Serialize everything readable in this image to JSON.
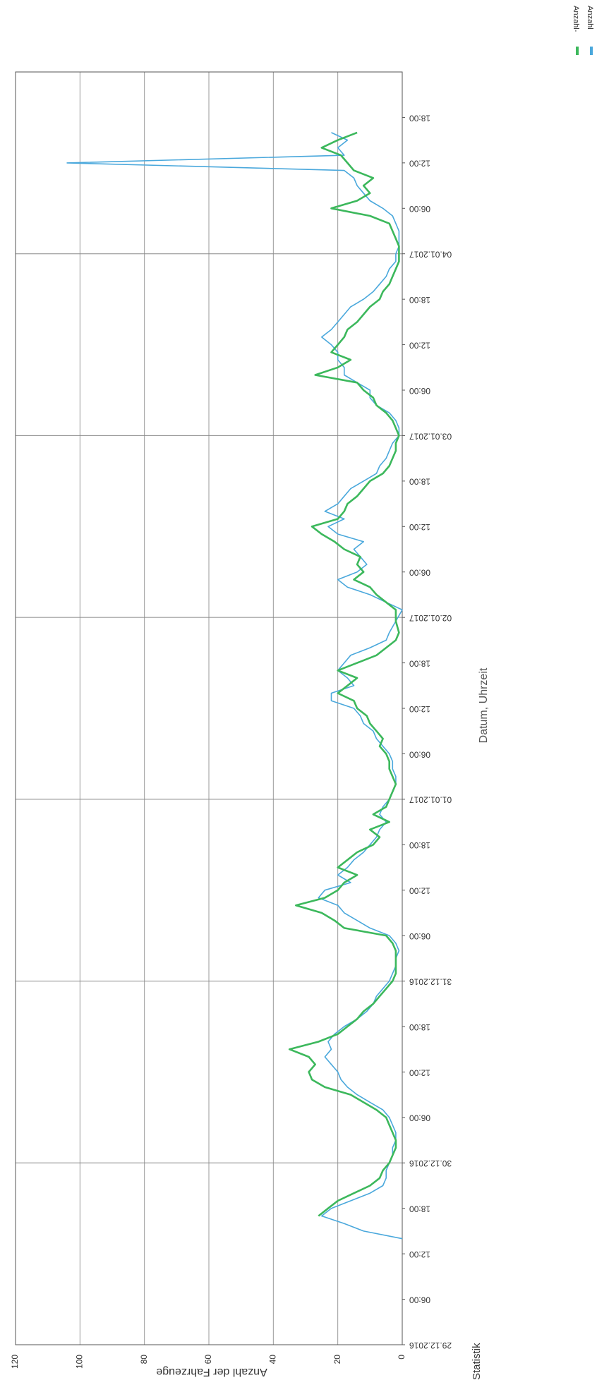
{
  "chart_data": {
    "type": "line",
    "orientation": "rotated-90",
    "xlabel": "Datum, Uhrzeit",
    "ylabel": "Anzahl der Fahrzeuge",
    "ylim": [
      0,
      120
    ],
    "yticks": [
      0,
      20,
      40,
      60,
      80,
      100,
      120
    ],
    "xlim": [
      "29.12.2016 00:00",
      "05.01.2017 00:00"
    ],
    "x_hours_range": [
      0,
      168
    ],
    "x_tick_labels": [
      {
        "label": "29.12.2016",
        "major": true
      },
      {
        "label": "06:00",
        "major": false
      },
      {
        "label": "12:00",
        "major": false
      },
      {
        "label": "18:00",
        "major": false
      },
      {
        "label": "30.12.2016",
        "major": true
      },
      {
        "label": "06:00",
        "major": false
      },
      {
        "label": "12:00",
        "major": false
      },
      {
        "label": "18:00",
        "major": false
      },
      {
        "label": "31.12.2016",
        "major": true
      },
      {
        "label": "06:00",
        "major": false
      },
      {
        "label": "12:00",
        "major": false
      },
      {
        "label": "18:00",
        "major": false
      },
      {
        "label": "01.01.2017",
        "major": true
      },
      {
        "label": "06:00",
        "major": false
      },
      {
        "label": "12:00",
        "major": false
      },
      {
        "label": "18:00",
        "major": false
      },
      {
        "label": "02.01.2017",
        "major": true
      },
      {
        "label": "06:00",
        "major": false
      },
      {
        "label": "12:00",
        "major": false
      },
      {
        "label": "18:00",
        "major": false
      },
      {
        "label": "03.01.2017",
        "major": true
      },
      {
        "label": "06:00",
        "major": false
      },
      {
        "label": "12:00",
        "major": false
      },
      {
        "label": "18:00",
        "major": false
      },
      {
        "label": "04.01.2017",
        "major": true
      },
      {
        "label": "06:00",
        "major": false
      },
      {
        "label": "12:00",
        "major": false
      },
      {
        "label": "18:00",
        "major": false
      }
    ],
    "grid": true,
    "legend_position": "top-right",
    "series": [
      {
        "name": "Anzahl",
        "color": "#4aa8dc",
        "points": [
          [
            14,
            0
          ],
          [
            15,
            12
          ],
          [
            16,
            18
          ],
          [
            17,
            25
          ],
          [
            18,
            22
          ],
          [
            19,
            16
          ],
          [
            20,
            10
          ],
          [
            21,
            6
          ],
          [
            22,
            5
          ],
          [
            23,
            5
          ],
          [
            24,
            4
          ],
          [
            25,
            3
          ],
          [
            26,
            3
          ],
          [
            27,
            2
          ],
          [
            28,
            2
          ],
          [
            29,
            3
          ],
          [
            30,
            4
          ],
          [
            31,
            6
          ],
          [
            32,
            10
          ],
          [
            33,
            14
          ],
          [
            34,
            17
          ],
          [
            35,
            19
          ],
          [
            36,
            20
          ],
          [
            37,
            22
          ],
          [
            38,
            24
          ],
          [
            39,
            22
          ],
          [
            40,
            23
          ],
          [
            41,
            21
          ],
          [
            42,
            18
          ],
          [
            43,
            14
          ],
          [
            44,
            11
          ],
          [
            45,
            9
          ],
          [
            46,
            8
          ],
          [
            47,
            6
          ],
          [
            48,
            4
          ],
          [
            49,
            3
          ],
          [
            50,
            2
          ],
          [
            51,
            2
          ],
          [
            52,
            1
          ],
          [
            53,
            2
          ],
          [
            54,
            4
          ],
          [
            55,
            10
          ],
          [
            56,
            14
          ],
          [
            57,
            18
          ],
          [
            58,
            20
          ],
          [
            59,
            26
          ],
          [
            60,
            24
          ],
          [
            61,
            16
          ],
          [
            62,
            20
          ],
          [
            63,
            17
          ],
          [
            64,
            15
          ],
          [
            65,
            12
          ],
          [
            66,
            10
          ],
          [
            67,
            8
          ],
          [
            68,
            7
          ],
          [
            69,
            5
          ],
          [
            70,
            7
          ],
          [
            71,
            6
          ],
          [
            72,
            4
          ],
          [
            73,
            3
          ],
          [
            74,
            2
          ],
          [
            75,
            2
          ],
          [
            76,
            3
          ],
          [
            77,
            3
          ],
          [
            78,
            4
          ],
          [
            79,
            6
          ],
          [
            80,
            8
          ],
          [
            81,
            9
          ],
          [
            82,
            12
          ],
          [
            83,
            13
          ],
          [
            84,
            15
          ],
          [
            85,
            22
          ],
          [
            86,
            22
          ],
          [
            87,
            15
          ],
          [
            88,
            17
          ],
          [
            89,
            20
          ],
          [
            90,
            18
          ],
          [
            91,
            16
          ],
          [
            92,
            10
          ],
          [
            93,
            5
          ],
          [
            94,
            4
          ],
          [
            97,
            0
          ],
          [
            98,
            5
          ],
          [
            99,
            10
          ],
          [
            100,
            17
          ],
          [
            101,
            20
          ],
          [
            102,
            14
          ],
          [
            103,
            11
          ],
          [
            104,
            13
          ],
          [
            105,
            15
          ],
          [
            106,
            12
          ],
          [
            107,
            20
          ],
          [
            108,
            23
          ],
          [
            109,
            18
          ],
          [
            110,
            24
          ],
          [
            111,
            20
          ],
          [
            112,
            18
          ],
          [
            113,
            16
          ],
          [
            114,
            12
          ],
          [
            115,
            8
          ],
          [
            116,
            7
          ],
          [
            117,
            5
          ],
          [
            118,
            4
          ],
          [
            119,
            3
          ],
          [
            120,
            1
          ],
          [
            121,
            1
          ],
          [
            122,
            2
          ],
          [
            123,
            4
          ],
          [
            124,
            8
          ],
          [
            125,
            10
          ],
          [
            126,
            10
          ],
          [
            127,
            14
          ],
          [
            128,
            18
          ],
          [
            129,
            18
          ],
          [
            130,
            20
          ],
          [
            131,
            20
          ],
          [
            132,
            22
          ],
          [
            133,
            25
          ],
          [
            134,
            22
          ],
          [
            135,
            20
          ],
          [
            136,
            18
          ],
          [
            137,
            16
          ],
          [
            138,
            12
          ],
          [
            139,
            9
          ],
          [
            140,
            7
          ],
          [
            141,
            5
          ],
          [
            142,
            4
          ],
          [
            143,
            2
          ],
          [
            144,
            2
          ],
          [
            145,
            1
          ],
          [
            146,
            1
          ],
          [
            147,
            1
          ],
          [
            148,
            2
          ],
          [
            149,
            3
          ],
          [
            150,
            6
          ],
          [
            151,
            10
          ],
          [
            152,
            12
          ],
          [
            153,
            14
          ],
          [
            154,
            15
          ],
          [
            155,
            18
          ],
          [
            156,
            104
          ],
          [
            157,
            18
          ],
          [
            158,
            20
          ],
          [
            159,
            17
          ],
          [
            160,
            22
          ]
        ]
      },
      {
        "name": "Anzahl-",
        "color": "#3cb85c",
        "points": [
          [
            17,
            26
          ],
          [
            18,
            23
          ],
          [
            19,
            20
          ],
          [
            20,
            15
          ],
          [
            21,
            10
          ],
          [
            22,
            7
          ],
          [
            23,
            6
          ],
          [
            24,
            4
          ],
          [
            25,
            3
          ],
          [
            26,
            2
          ],
          [
            27,
            2
          ],
          [
            28,
            3
          ],
          [
            29,
            4
          ],
          [
            30,
            5
          ],
          [
            31,
            8
          ],
          [
            32,
            12
          ],
          [
            33,
            16
          ],
          [
            34,
            24
          ],
          [
            35,
            28
          ],
          [
            36,
            29
          ],
          [
            37,
            27
          ],
          [
            38,
            29
          ],
          [
            39,
            35
          ],
          [
            40,
            26
          ],
          [
            41,
            20
          ],
          [
            42,
            17
          ],
          [
            43,
            14
          ],
          [
            44,
            12
          ],
          [
            45,
            9
          ],
          [
            46,
            7
          ],
          [
            47,
            5
          ],
          [
            48,
            3
          ],
          [
            49,
            2
          ],
          [
            50,
            2
          ],
          [
            51,
            2
          ],
          [
            52,
            2
          ],
          [
            53,
            3
          ],
          [
            54,
            5
          ],
          [
            55,
            18
          ],
          [
            56,
            21
          ],
          [
            57,
            25
          ],
          [
            58,
            33
          ],
          [
            59,
            24
          ],
          [
            60,
            20
          ],
          [
            61,
            18
          ],
          [
            62,
            14
          ],
          [
            63,
            20
          ],
          [
            64,
            17
          ],
          [
            65,
            14
          ],
          [
            66,
            9
          ],
          [
            67,
            7
          ],
          [
            68,
            10
          ],
          [
            69,
            4
          ],
          [
            70,
            9
          ],
          [
            71,
            5
          ],
          [
            72,
            4
          ],
          [
            73,
            3
          ],
          [
            74,
            2
          ],
          [
            75,
            3
          ],
          [
            76,
            4
          ],
          [
            77,
            4
          ],
          [
            78,
            5
          ],
          [
            79,
            7
          ],
          [
            80,
            6
          ],
          [
            81,
            8
          ],
          [
            82,
            10
          ],
          [
            83,
            11
          ],
          [
            84,
            14
          ],
          [
            85,
            15
          ],
          [
            86,
            20
          ],
          [
            87,
            17
          ],
          [
            88,
            14
          ],
          [
            89,
            20
          ],
          [
            90,
            14
          ],
          [
            91,
            8
          ],
          [
            92,
            5
          ],
          [
            93,
            2
          ],
          [
            94,
            1
          ],
          [
            95.5,
            2
          ],
          [
            95.9,
            2
          ],
          [
            97,
            2
          ],
          [
            98,
            5
          ],
          [
            99,
            8
          ],
          [
            100,
            10
          ],
          [
            101,
            15
          ],
          [
            102,
            12
          ],
          [
            103,
            14
          ],
          [
            104,
            13
          ],
          [
            105,
            18
          ],
          [
            106,
            21
          ],
          [
            107,
            25
          ],
          [
            108,
            28
          ],
          [
            109,
            20
          ],
          [
            110,
            18
          ],
          [
            111,
            17
          ],
          [
            112,
            14
          ],
          [
            113,
            12
          ],
          [
            114,
            10
          ],
          [
            115,
            6
          ],
          [
            116,
            4
          ],
          [
            117,
            3
          ],
          [
            118,
            2
          ],
          [
            119,
            2
          ],
          [
            120,
            1
          ],
          [
            121,
            2
          ],
          [
            122,
            3
          ],
          [
            123,
            5
          ],
          [
            124,
            8
          ],
          [
            125,
            9
          ],
          [
            126,
            12
          ],
          [
            127,
            14
          ],
          [
            128,
            27
          ],
          [
            129,
            20
          ],
          [
            130,
            16
          ],
          [
            131,
            22
          ],
          [
            132,
            20
          ],
          [
            133,
            18
          ],
          [
            134,
            17
          ],
          [
            135,
            14
          ],
          [
            136,
            12
          ],
          [
            137,
            10
          ],
          [
            138,
            7
          ],
          [
            139,
            6
          ],
          [
            140,
            4
          ],
          [
            141,
            3
          ],
          [
            142,
            2
          ],
          [
            143,
            1
          ],
          [
            144,
            1
          ],
          [
            145,
            1
          ],
          [
            146,
            2
          ],
          [
            147,
            3
          ],
          [
            148,
            4
          ],
          [
            149,
            10
          ],
          [
            150,
            22
          ],
          [
            151,
            14
          ],
          [
            152,
            10
          ],
          [
            153,
            12
          ],
          [
            154,
            9
          ],
          [
            155,
            15
          ],
          [
            156,
            17
          ],
          [
            157,
            19
          ],
          [
            158,
            25
          ],
          [
            159,
            20
          ],
          [
            160,
            14
          ]
        ]
      }
    ]
  },
  "footer": {
    "text": "Statistik"
  }
}
